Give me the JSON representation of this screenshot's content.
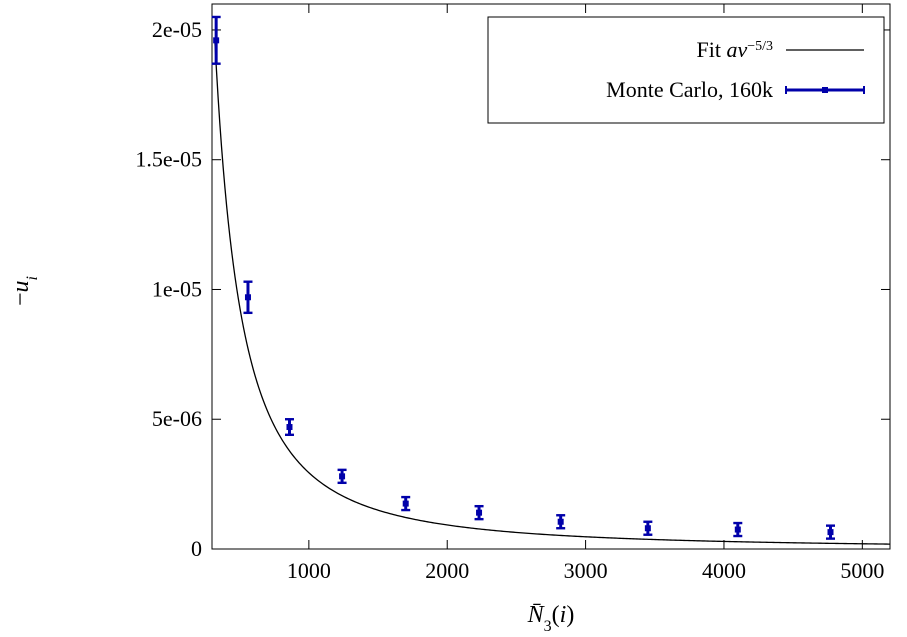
{
  "chart_data": {
    "type": "scatter",
    "xlabel": "N̄3(i)",
    "ylabel": "−ui",
    "xlim": [
      300,
      5200
    ],
    "ylim": [
      0,
      2.1e-05
    ],
    "x_ticks": [
      1000,
      2000,
      3000,
      4000,
      5000
    ],
    "x_tick_labels": [
      "1000",
      "2000",
      "3000",
      "4000",
      "5000"
    ],
    "y_ticks": [
      0,
      5e-06,
      1e-05,
      1.5e-05,
      2e-05
    ],
    "y_tick_labels": [
      "0",
      "5e-06",
      "1e-05",
      "1.5e-05",
      "2e-05"
    ],
    "grid": false,
    "legend_position": "top-right",
    "series": [
      {
        "name": "Fit av^{-5/3}",
        "kind": "line",
        "color": "#000000",
        "formula": "a * v^(-5/3)",
        "a": 0.294,
        "x_range": [
          320,
          5200
        ]
      },
      {
        "name": "Monte Carlo, 160k",
        "kind": "errorbar",
        "color": "#0000aa",
        "points": [
          {
            "x": 330,
            "y": 1.96e-05,
            "err": 9e-07
          },
          {
            "x": 560,
            "y": 9.7e-06,
            "err": 6e-07
          },
          {
            "x": 860,
            "y": 4.7e-06,
            "err": 3e-07
          },
          {
            "x": 1240,
            "y": 2.8e-06,
            "err": 2.5e-07
          },
          {
            "x": 1700,
            "y": 1.75e-06,
            "err": 2.5e-07
          },
          {
            "x": 2230,
            "y": 1.4e-06,
            "err": 2.5e-07
          },
          {
            "x": 2820,
            "y": 1.05e-06,
            "err": 2.5e-07
          },
          {
            "x": 3450,
            "y": 8e-07,
            "err": 2.5e-07
          },
          {
            "x": 4100,
            "y": 7.5e-07,
            "err": 2.5e-07
          },
          {
            "x": 4770,
            "y": 6.5e-07,
            "err": 2.5e-07
          }
        ]
      }
    ]
  }
}
